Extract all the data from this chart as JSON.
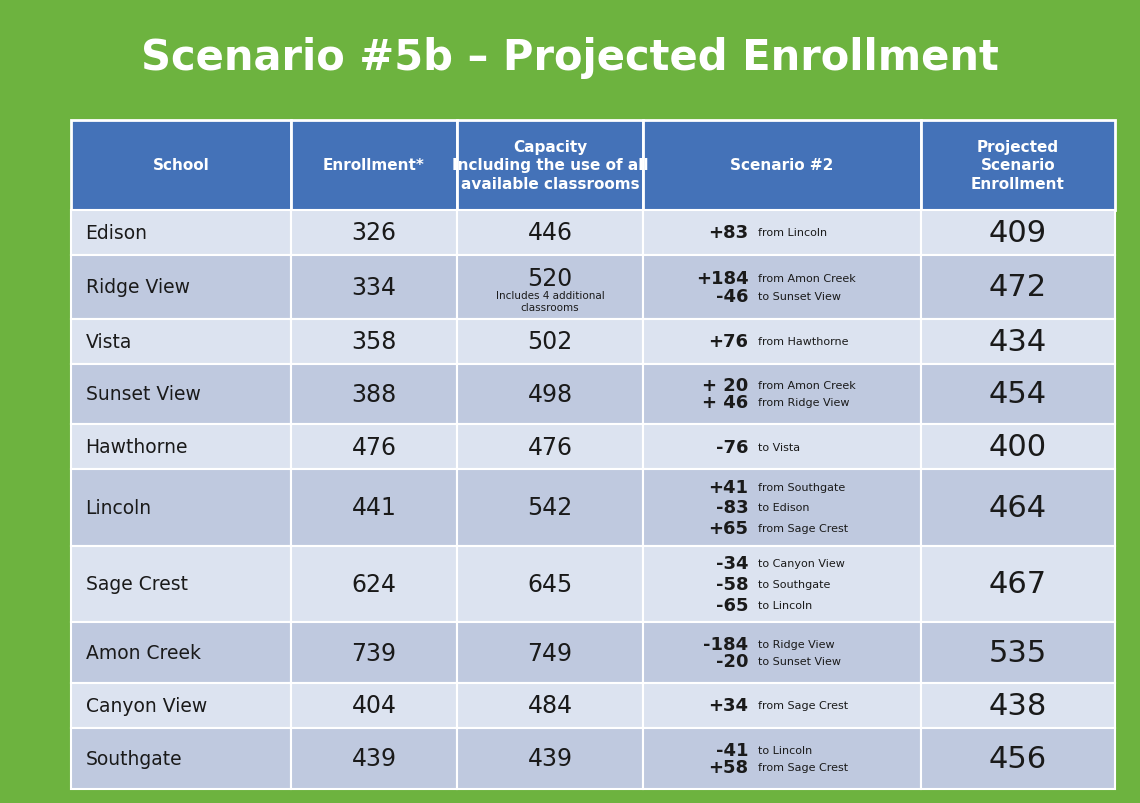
{
  "title": "Scenario #5b – Projected Enrollment",
  "title_bg_color": "#6db33f",
  "header_bg_color": "#4472b8",
  "header_text_color": "#ffffff",
  "rows": [
    {
      "school": "Edison",
      "enrollment": "326",
      "capacity": "446",
      "capacity_note": "",
      "scenario": [
        [
          "+83",
          "from Lincoln"
        ]
      ],
      "projected": "409",
      "shade": "light"
    },
    {
      "school": "Ridge View",
      "enrollment": "334",
      "capacity": "520",
      "capacity_note": "Includes 4 additional\nclassrooms",
      "scenario": [
        [
          "+184",
          "from Amon Creek"
        ],
        [
          "-46",
          "to Sunset View"
        ]
      ],
      "projected": "472",
      "shade": "medium"
    },
    {
      "school": "Vista",
      "enrollment": "358",
      "capacity": "502",
      "capacity_note": "",
      "scenario": [
        [
          "+76",
          "from Hawthorne"
        ]
      ],
      "projected": "434",
      "shade": "light"
    },
    {
      "school": "Sunset View",
      "enrollment": "388",
      "capacity": "498",
      "capacity_note": "",
      "scenario": [
        [
          "+ 20",
          "from Amon Creek"
        ],
        [
          "+ 46",
          "from Ridge View"
        ]
      ],
      "projected": "454",
      "shade": "medium"
    },
    {
      "school": "Hawthorne",
      "enrollment": "476",
      "capacity": "476",
      "capacity_note": "",
      "scenario": [
        [
          "-76",
          "to Vista"
        ]
      ],
      "projected": "400",
      "shade": "light"
    },
    {
      "school": "Lincoln",
      "enrollment": "441",
      "capacity": "542",
      "capacity_note": "",
      "scenario": [
        [
          "+41",
          "from Southgate"
        ],
        [
          "-83",
          "to Edison"
        ],
        [
          "+65",
          "from Sage Crest"
        ]
      ],
      "projected": "464",
      "shade": "medium"
    },
    {
      "school": "Sage Crest",
      "enrollment": "624",
      "capacity": "645",
      "capacity_note": "",
      "scenario": [
        [
          "-34",
          "to Canyon View"
        ],
        [
          "-58",
          "to Southgate"
        ],
        [
          "-65",
          "to Lincoln"
        ]
      ],
      "projected": "467",
      "shade": "light"
    },
    {
      "school": "Amon Creek",
      "enrollment": "739",
      "capacity": "749",
      "capacity_note": "",
      "scenario": [
        [
          "-184",
          "to Ridge View"
        ],
        [
          "-20",
          "to Sunset View"
        ]
      ],
      "projected": "535",
      "shade": "medium"
    },
    {
      "school": "Canyon View",
      "enrollment": "404",
      "capacity": "484",
      "capacity_note": "",
      "scenario": [
        [
          "+34",
          "from Sage Crest"
        ]
      ],
      "projected": "438",
      "shade": "light"
    },
    {
      "school": "Southgate",
      "enrollment": "439",
      "capacity": "439",
      "capacity_note": "",
      "scenario": [
        [
          "-41",
          "to Lincoln"
        ],
        [
          "+58",
          "from Sage Crest"
        ]
      ],
      "projected": "456",
      "shade": "medium"
    }
  ],
  "row_color_light": "#dce3f0",
  "row_color_medium": "#bfc9df",
  "border_color": "#ffffff",
  "text_color_dark": "#1a1a1a",
  "figsize": [
    11.4,
    8.04
  ],
  "dpi": 100
}
